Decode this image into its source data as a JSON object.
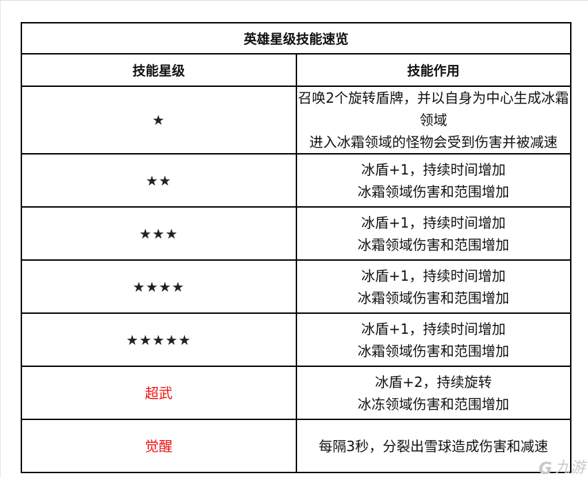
{
  "title": "英雄星级技能速览",
  "headers": [
    "技能星级",
    "技能作用"
  ],
  "rows": [
    {
      "level": "★",
      "lines": [
        "召唤2个旋转盾牌，并以自身为中心生成冰霜领域",
        "进入冰霜领域的怪物会受到伤害并被减速"
      ]
    },
    {
      "level": "★★",
      "lines": [
        "冰盾+1，持续时间增加",
        "冰霜领域伤害和范围增加"
      ]
    },
    {
      "level": "★★★",
      "lines": [
        "冰盾+1，持续时间增加",
        "冰霜领域伤害和范围增加"
      ]
    },
    {
      "level": "★★★★",
      "lines": [
        "冰盾+1，持续时间增加",
        "冰霜领域伤害和范围增加"
      ]
    },
    {
      "level": "★★★★★",
      "lines": [
        "冰盾+1，持续时间增加",
        "冰霜领域伤害和范围增加"
      ]
    },
    {
      "level": "超武",
      "lines": [
        "冰盾+2，持续旋转",
        "冰冻领域伤害和范围增加"
      ]
    },
    {
      "level": "觉醒",
      "lines": [
        "每隔3秒，分裂出雪球造成伤害和减速"
      ]
    }
  ],
  "colors": {
    "special_level": "#f01010"
  },
  "watermark": {
    "logo_glyph": "G",
    "text": "九游"
  }
}
